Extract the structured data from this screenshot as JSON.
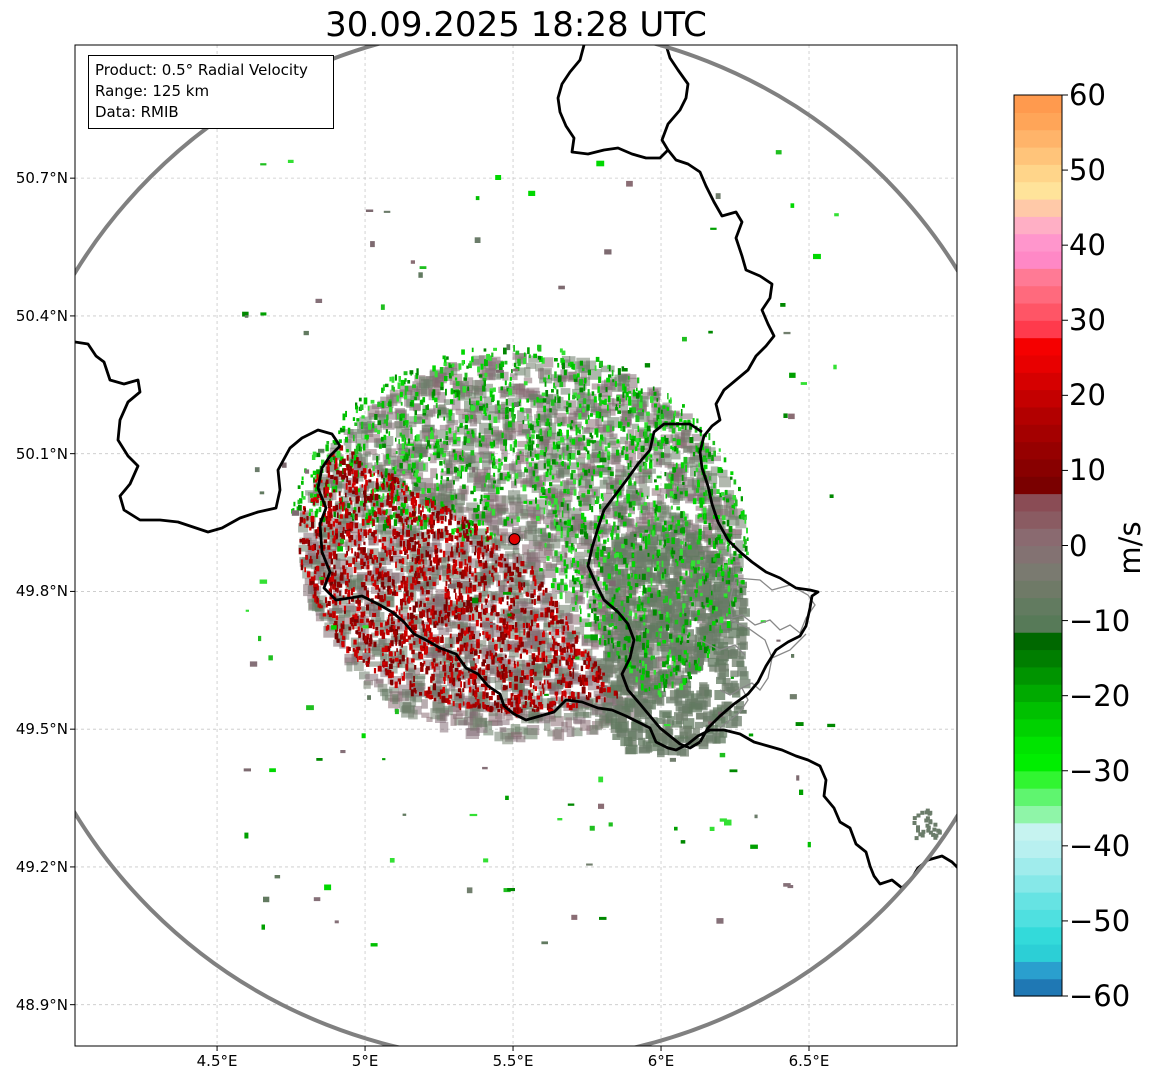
{
  "title": "30.09.2025 18:28 UTC",
  "info": {
    "product": "Product: 0.5° Radial Velocity",
    "range": "Range: 125 km",
    "data": "Data: RMIB"
  },
  "map_extent": {
    "lon": [
      4.02,
      7.0
    ],
    "lat": [
      48.81,
      50.99
    ]
  },
  "radar_site": {
    "lon": 5.505,
    "lat": 49.914,
    "color": "#e00000",
    "range_km": 125
  },
  "latitude_ticks": [
    "50.7°N",
    "50.4°N",
    "50.1°N",
    "49.8°N",
    "49.5°N",
    "49.2°N",
    "48.9°N"
  ],
  "latitude_values": [
    50.7,
    50.4,
    50.1,
    49.8,
    49.5,
    49.2,
    48.9
  ],
  "longitude_ticks": [
    "4.5°E",
    "5°E",
    "5.5°E",
    "6°E",
    "6.5°E"
  ],
  "longitude_values": [
    4.5,
    5.0,
    5.5,
    6.0,
    6.5
  ],
  "colorbar": {
    "unit": "m/s",
    "min": -60,
    "max": 60,
    "ticks": [
      "60",
      "50",
      "40",
      "30",
      "20",
      "10",
      "0",
      "−10",
      "−20",
      "−30",
      "−40",
      "−50",
      "−60"
    ],
    "tick_values": [
      60,
      50,
      40,
      30,
      20,
      10,
      0,
      -10,
      -20,
      -30,
      -40,
      -50,
      -60
    ],
    "colors": [
      "#1f78b4",
      "#2a9fce",
      "#2ccfd6",
      "#33dada",
      "#4fe0e0",
      "#66e3e3",
      "#86e8e8",
      "#a0ecec",
      "#b8f0f0",
      "#c6f3f0",
      "#8ff5a8",
      "#5ff56f",
      "#31f531",
      "#00ee00",
      "#00e400",
      "#00d200",
      "#00c000",
      "#00aa00",
      "#009400",
      "#007e00",
      "#006800",
      "#577a58",
      "#627b60",
      "#6f7a67",
      "#7a7a70",
      "#837272",
      "#8a6a70",
      "#8a5b62",
      "#8a4c55",
      "#7a0000",
      "#880000",
      "#960000",
      "#a40000",
      "#b20000",
      "#c40000",
      "#d60000",
      "#e80000",
      "#f50000",
      "#ff3a4c",
      "#ff5566",
      "#ff6a7d",
      "#ff7a95",
      "#ff88c6",
      "#ff96cc",
      "#ffafc5",
      "#ffc9a8",
      "#ffe39a",
      "#ffd58a",
      "#ffc47a",
      "#ffb46a",
      "#ffa558",
      "#ff9a4e"
    ]
  },
  "colors": {
    "border": "#000000",
    "range_ring": "#808080",
    "grid": "#c8c8c8",
    "admin_border": "#888888",
    "echo_ground": "#6b7c6a",
    "echo_mixed": "#8a6d74"
  }
}
